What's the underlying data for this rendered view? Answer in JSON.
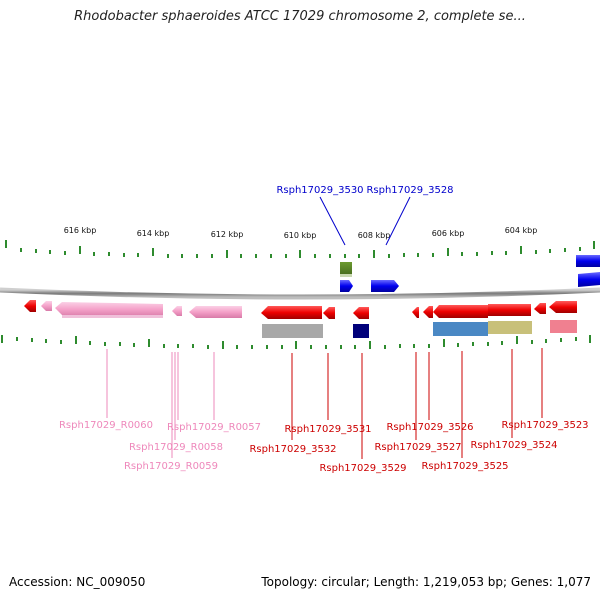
{
  "title": "Rhodobacter sphaeroides ATCC 17029 chromosome 2, complete se...",
  "footer": {
    "accession": "Accession: NC_009050",
    "info": "Topology: circular; Length: 1,219,053 bp; Genes: 1,077"
  },
  "ruler_labels": [
    "616 kbp",
    "614 kbp",
    "612 kbp",
    "610 kbp",
    "608 kbp",
    "606 kbp",
    "604 kbp"
  ],
  "gene_labels": [
    {
      "text": "Rsph17029_3530",
      "color": "#0000cc"
    },
    {
      "text": "Rsph17029_3528",
      "color": "#0000cc"
    },
    {
      "text": "Rsph17029_R0060",
      "color": "#ee88bb"
    },
    {
      "text": "Rsph17029_R0057",
      "color": "#ee88bb"
    },
    {
      "text": "Rsph17029_R0058",
      "color": "#ee88bb"
    },
    {
      "text": "Rsph17029_R0059",
      "color": "#ee88bb"
    },
    {
      "text": "Rsph17029_3531",
      "color": "#cc0000"
    },
    {
      "text": "Rsph17029_3532",
      "color": "#cc0000"
    },
    {
      "text": "Rsph17029_3529",
      "color": "#cc0000"
    },
    {
      "text": "Rsph17029_3526",
      "color": "#cc0000"
    },
    {
      "text": "Rsph17029_3527",
      "color": "#cc0000"
    },
    {
      "text": "Rsph17029_3525",
      "color": "#cc0000"
    },
    {
      "text": "Rsph17029_3523",
      "color": "#cc0000"
    },
    {
      "text": "Rsph17029_3524",
      "color": "#cc0000"
    }
  ],
  "colors": {
    "backbone": "#888888",
    "tick": "#2e8b2e",
    "forward_gene": "#0000ee",
    "reverse_gene": "#ee0000",
    "rna_gene": "#f4a0c8"
  }
}
